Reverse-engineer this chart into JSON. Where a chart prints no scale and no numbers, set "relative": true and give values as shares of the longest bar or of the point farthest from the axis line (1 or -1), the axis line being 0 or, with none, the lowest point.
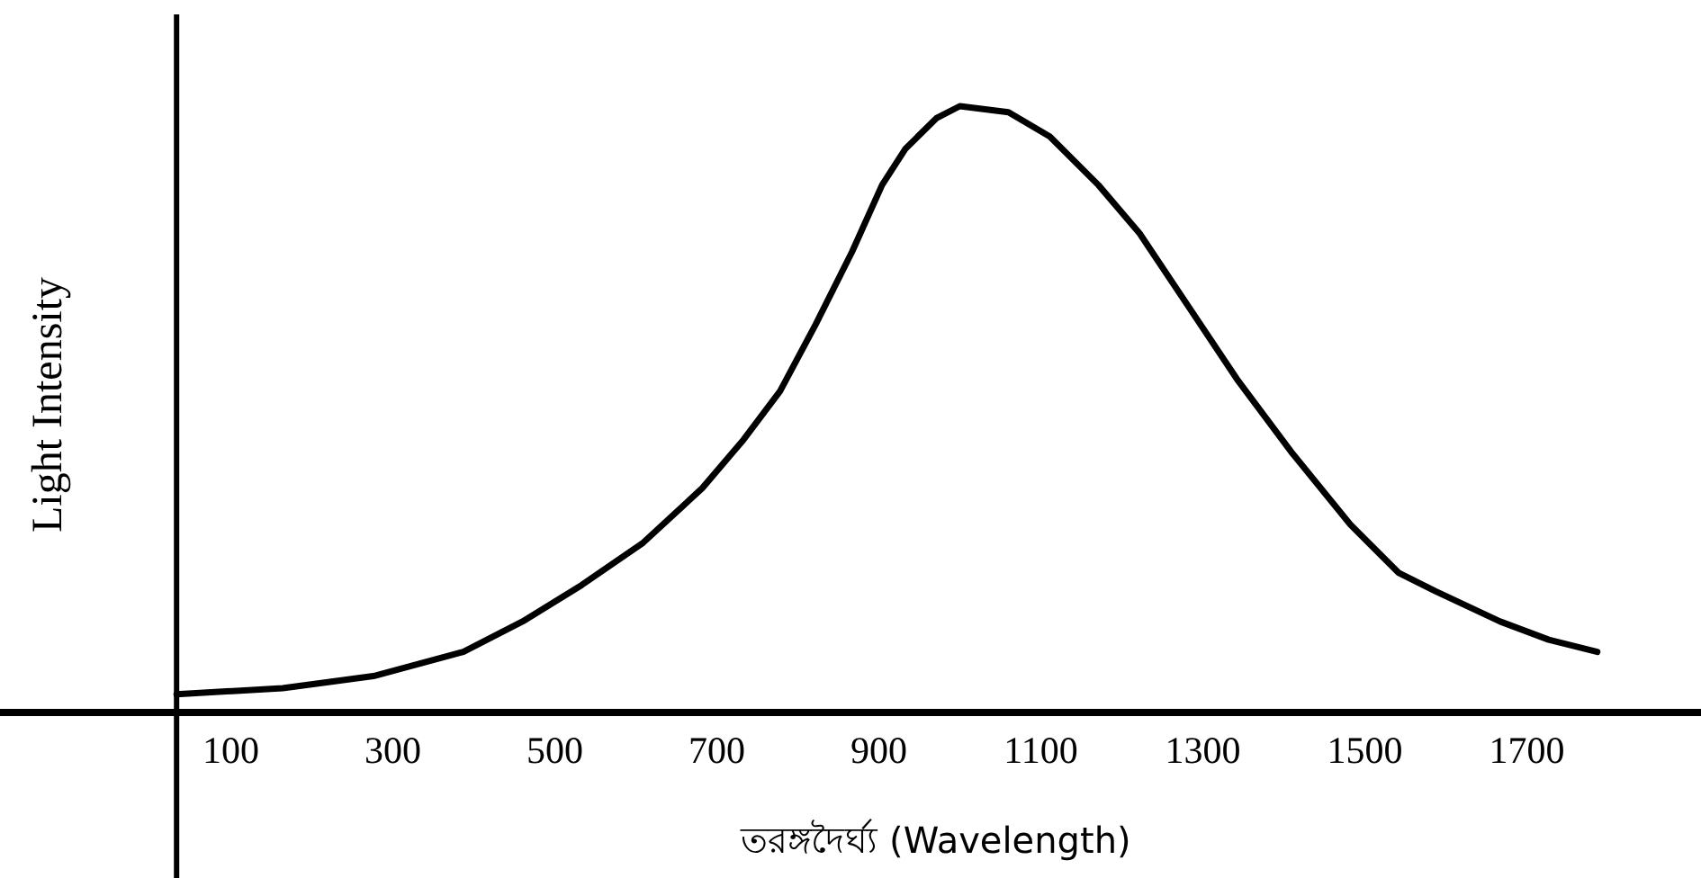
{
  "chart_data": {
    "type": "line",
    "xlabel": "তরঙ্গদৈর্ঘ্য  (Wavelength)",
    "ylabel": "Light Intensity",
    "relative": true,
    "xlim": [
      -185,
      1915
    ],
    "ref_lines": [
      {
        "axis": "x",
        "value": 33,
        "color": "#000000"
      }
    ],
    "xticks": [
      100,
      300,
      500,
      700,
      900,
      1100,
      1300,
      1500,
      1700
    ],
    "x": [
      33,
      164,
      276,
      387,
      460,
      533,
      609,
      682,
      733,
      778,
      822,
      867,
      904,
      933,
      971,
      1000,
      1060,
      1111,
      1171,
      1222,
      1282,
      1342,
      1409,
      1482,
      1542,
      1587,
      1667,
      1727,
      1787
    ],
    "series": [
      {
        "color": "#000000",
        "values": [
          0.03,
          0.04,
          0.06,
          0.1,
          0.15,
          0.21,
          0.28,
          0.37,
          0.45,
          0.53,
          0.64,
          0.76,
          0.87,
          0.93,
          0.98,
          1,
          0.99,
          0.95,
          0.87,
          0.79,
          0.67,
          0.55,
          0.43,
          0.31,
          0.23,
          0.2,
          0.15,
          0.12,
          0.1
        ]
      }
    ]
  }
}
